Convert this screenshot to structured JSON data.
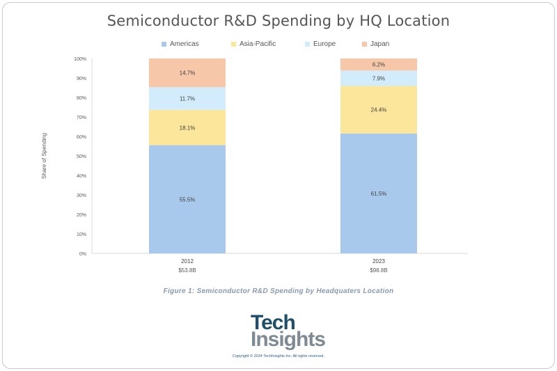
{
  "chart_data": {
    "type": "bar",
    "stacked": true,
    "title": "Semiconductor R&D Spending by HQ Location",
    "ylabel": "Share of Spending",
    "ylim": [
      0,
      100
    ],
    "yticks": [
      "0%",
      "10%",
      "20%",
      "30%",
      "40%",
      "50%",
      "60%",
      "70%",
      "80%",
      "90%",
      "100%"
    ],
    "categories": [
      "2012",
      "2023"
    ],
    "category_sublabels": [
      "$53.8B",
      "$98.8B"
    ],
    "legend_position": "top",
    "series": [
      {
        "name": "Americas",
        "color": "#a9c9ec",
        "values": [
          55.5,
          61.5
        ],
        "labels": [
          "55.5%",
          "61.5%"
        ]
      },
      {
        "name": "Asia-Pacific",
        "color": "#fbe69b",
        "values": [
          18.1,
          24.4
        ],
        "labels": [
          "18.1%",
          "24.4%"
        ]
      },
      {
        "name": "Europe",
        "color": "#d2ecfb",
        "values": [
          11.7,
          7.9
        ],
        "labels": [
          "11.7%",
          "7.9%"
        ]
      },
      {
        "name": "Japan",
        "color": "#f6c7a8",
        "values": [
          14.7,
          6.2
        ],
        "labels": [
          "14.7%",
          "6.2%"
        ]
      }
    ]
  },
  "caption": "Figure 1: Semiconductor R&D Spending by Headquaters Location",
  "logo": {
    "line1": "Tech",
    "line2": "Insights"
  },
  "copyright": "Copyright © 2024 TechInsights Inc. All rights reserved."
}
